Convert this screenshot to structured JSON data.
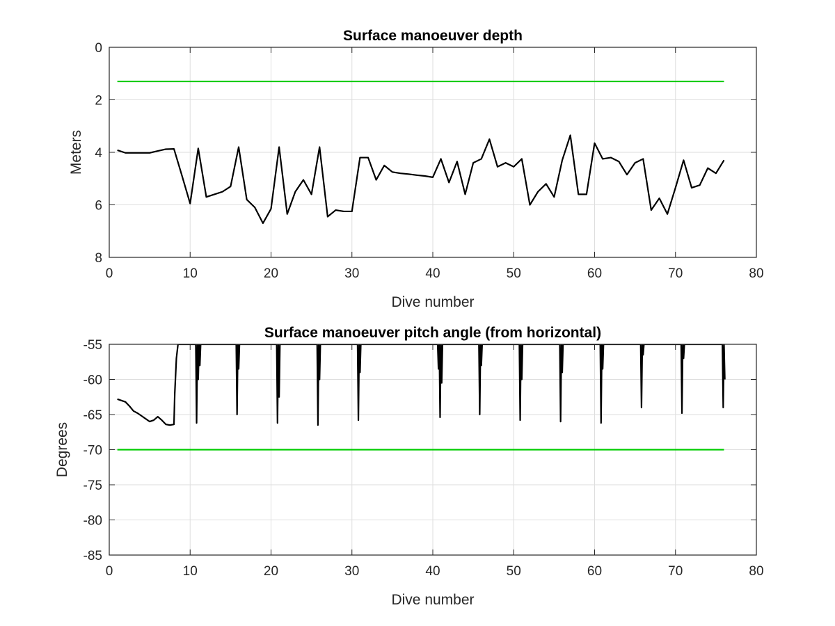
{
  "chart_data": [
    {
      "type": "line",
      "title": "Surface manoeuver depth",
      "xlabel": "Dive number",
      "ylabel": "Meters",
      "xlim": [
        0,
        80
      ],
      "ylim": [
        0,
        8
      ],
      "y_reversed": true,
      "grid": true,
      "xticks": [
        "0",
        "10",
        "20",
        "30",
        "40",
        "50",
        "60",
        "70",
        "80"
      ],
      "yticks": [
        "0",
        "2",
        "4",
        "6",
        "8"
      ],
      "series": [
        {
          "color": "#00cc00",
          "x": [
            1,
            76
          ],
          "y": [
            1.3,
            1.3
          ]
        },
        {
          "color": "#000000",
          "x": [
            1,
            2,
            3,
            4,
            5,
            6,
            7,
            8,
            9,
            10,
            11,
            12,
            13,
            14,
            15,
            16,
            17,
            18,
            19,
            20,
            21,
            22,
            23,
            24,
            25,
            26,
            27,
            28,
            29,
            30,
            31,
            32,
            33,
            34,
            35,
            36,
            37,
            38,
            39,
            40,
            41,
            42,
            43,
            44,
            45,
            46,
            47,
            48,
            49,
            50,
            51,
            52,
            53,
            54,
            55,
            56,
            57,
            58,
            59,
            60,
            61,
            62,
            63,
            64,
            65,
            66,
            67,
            68,
            69,
            70,
            71,
            72,
            73,
            74,
            75,
            76
          ],
          "y": [
            3.92,
            4.02,
            4.02,
            4.02,
            4.02,
            3.95,
            3.88,
            3.87,
            4.9,
            5.95,
            3.85,
            5.7,
            5.6,
            5.5,
            5.3,
            3.8,
            5.8,
            6.1,
            6.7,
            6.15,
            3.8,
            6.35,
            5.5,
            5.05,
            5.6,
            3.8,
            6.45,
            6.2,
            6.25,
            6.25,
            4.2,
            4.2,
            5.05,
            4.5,
            4.75,
            4.8,
            4.83,
            4.87,
            4.9,
            4.95,
            4.25,
            5.15,
            4.35,
            5.6,
            4.4,
            4.25,
            3.5,
            4.55,
            4.4,
            4.55,
            4.25,
            6.0,
            5.5,
            5.2,
            5.7,
            4.3,
            3.35,
            5.6,
            5.6,
            3.65,
            4.25,
            4.2,
            4.35,
            4.85,
            4.4,
            4.25,
            6.2,
            5.75,
            6.35,
            5.35,
            4.3,
            5.35,
            5.25,
            4.6,
            4.8,
            4.3
          ]
        }
      ]
    },
    {
      "type": "line",
      "title": "Surface manoeuver pitch angle (from horizontal)",
      "xlabel": "Dive number",
      "ylabel": "Degrees",
      "xlim": [
        0,
        80
      ],
      "ylim": [
        -85,
        -55
      ],
      "y_reversed": false,
      "grid": true,
      "xticks": [
        "0",
        "10",
        "20",
        "30",
        "40",
        "50",
        "60",
        "70",
        "80"
      ],
      "yticks": [
        "-55",
        "-60",
        "-65",
        "-70",
        "-75",
        "-80",
        "-85"
      ],
      "series": [
        {
          "color": "#00cc00",
          "x": [
            1,
            76
          ],
          "y": [
            -70,
            -70
          ]
        },
        {
          "color": "#000000",
          "x": [
            1,
            1.5,
            2,
            2.5,
            3,
            3.5,
            4,
            4.5,
            5,
            5.5,
            6,
            6.5,
            7,
            7.5,
            8,
            8.1,
            8.3,
            8.5,
            10.7,
            10.8,
            10.9,
            11.0,
            11.1,
            11.2,
            11.3,
            15.7,
            15.8,
            15.9,
            16.0,
            16.1,
            16.2,
            20.7,
            20.8,
            20.9,
            21.0,
            21.1,
            21.2,
            25.7,
            25.8,
            25.9,
            26.0,
            26.1,
            26.2,
            30.7,
            30.8,
            30.9,
            31.0,
            31.1,
            31.2,
            40.6,
            40.7,
            40.8,
            40.9,
            41.0,
            41.1,
            41.2,
            45.7,
            45.8,
            45.9,
            46.0,
            46.1,
            46.2,
            50.7,
            50.8,
            50.9,
            51.0,
            51.1,
            51.2,
            55.7,
            55.8,
            55.9,
            56.0,
            56.1,
            56.2,
            60.7,
            60.8,
            60.9,
            61.0,
            61.1,
            61.2,
            65.7,
            65.8,
            65.9,
            66.0,
            66.1,
            66.2,
            70.7,
            70.8,
            70.9,
            71.0,
            71.1,
            71.2,
            75.8,
            75.9,
            76.0,
            76.1
          ],
          "y": [
            -62.8,
            -63.0,
            -63.2,
            -63.8,
            -64.5,
            -64.8,
            -65.2,
            -65.6,
            -66.0,
            -65.8,
            -65.3,
            -65.8,
            -66.4,
            -66.5,
            -66.4,
            -62.0,
            -57.0,
            -55.0,
            -55.0,
            -66.2,
            -55.0,
            -60.0,
            -55.0,
            -58.0,
            -55.0,
            -55.0,
            -65.0,
            -55.0,
            -58.5,
            -55.0,
            -55.0,
            -55.0,
            -66.2,
            -55.0,
            -62.5,
            -55.0,
            -55.0,
            -55.0,
            -66.5,
            -55.0,
            -60.0,
            -55.0,
            -55.0,
            -55.0,
            -65.8,
            -55.0,
            -59.0,
            -55.0,
            -55.0,
            -55.0,
            -58.5,
            -55.0,
            -65.4,
            -55.0,
            -60.5,
            -55.0,
            -55.0,
            -65.0,
            -55.0,
            -58.0,
            -55.0,
            -55.0,
            -55.0,
            -65.8,
            -55.0,
            -60.0,
            -55.0,
            -55.0,
            -55.0,
            -66.0,
            -55.0,
            -59.0,
            -55.0,
            -55.0,
            -55.0,
            -66.2,
            -55.0,
            -58.5,
            -55.0,
            -55.0,
            -55.0,
            -64.0,
            -55.0,
            -56.5,
            -55.0,
            -55.0,
            -55.0,
            -64.8,
            -55.0,
            -57.0,
            -55.0,
            -55.0,
            -55.0,
            -64.0,
            -55.0,
            -60.0
          ]
        }
      ]
    }
  ]
}
